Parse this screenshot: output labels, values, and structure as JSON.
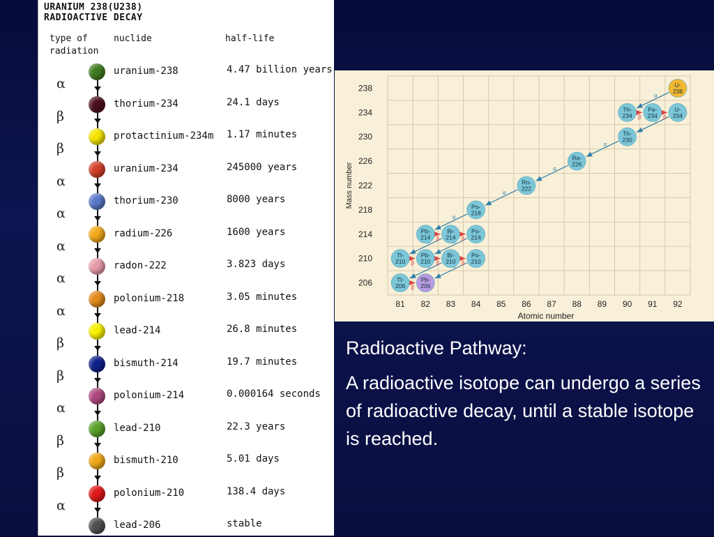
{
  "table": {
    "title_line1": "URANIUM 238(U238)",
    "title_line2": "RADIOACTIVE DECAY",
    "header_type_line1": "type of",
    "header_type_line2": "radiation",
    "header_nuclide": "nuclide",
    "header_halflife": "half-life",
    "rows": [
      {
        "nuclide": "uranium-238",
        "half_life": "4.47 billion years",
        "color": "#3f7a1e"
      },
      {
        "nuclide": "thorium-234",
        "half_life": "24.1 days",
        "color": "#4a0f1c"
      },
      {
        "nuclide": "protactinium-234m",
        "half_life": "1.17 minutes",
        "color": "#f5e400"
      },
      {
        "nuclide": "uranium-234",
        "half_life": "245000 years",
        "color": "#d2402a"
      },
      {
        "nuclide": "thorium-230",
        "half_life": "8000 years",
        "color": "#5a78c8"
      },
      {
        "nuclide": "radium-226",
        "half_life": "1600 years",
        "color": "#f0a818"
      },
      {
        "nuclide": "radon-222",
        "half_life": "3.823 days",
        "color": "#e89aa8"
      },
      {
        "nuclide": "polonium-218",
        "half_life": "3.05 minutes",
        "color": "#e08a1a"
      },
      {
        "nuclide": "lead-214",
        "half_life": "26.8 minutes",
        "color": "#f8f000"
      },
      {
        "nuclide": "bismuth-214",
        "half_life": "19.7 minutes",
        "color": "#10208a"
      },
      {
        "nuclide": "polonium-214",
        "half_life": "0.000164 seconds",
        "color": "#b04880"
      },
      {
        "nuclide": "lead-210",
        "half_life": "22.3 years",
        "color": "#58a028"
      },
      {
        "nuclide": "bismuth-210",
        "half_life": "5.01 days",
        "color": "#f0a818"
      },
      {
        "nuclide": "polonium-210",
        "half_life": "138.4 days",
        "color": "#e01818"
      },
      {
        "nuclide": "lead-206",
        "half_life": "stable",
        "color": "#505050"
      }
    ],
    "radiation": [
      "α",
      "β",
      "β",
      "α",
      "α",
      "α",
      "α",
      "α",
      "β",
      "β",
      "α",
      "β",
      "β",
      "α"
    ]
  },
  "chart_data": {
    "type": "scatter",
    "xlabel": "Atomic number",
    "ylabel": "Mass number",
    "x_ticks": [
      "81",
      "82",
      "83",
      "84",
      "85",
      "86",
      "87",
      "88",
      "89",
      "90",
      "91",
      "92"
    ],
    "y_ticks": [
      "238",
      "234",
      "230",
      "226",
      "222",
      "218",
      "214",
      "210",
      "206"
    ],
    "xlim": [
      81,
      92
    ],
    "ylim": [
      206,
      238
    ],
    "points": [
      {
        "label": "U-238",
        "z": 92,
        "a": 238,
        "color": "#f2b830"
      },
      {
        "label": "Th-234",
        "z": 90,
        "a": 234,
        "color": "#7cc6d8"
      },
      {
        "label": "Pa-234",
        "z": 91,
        "a": 234,
        "color": "#7cc6d8"
      },
      {
        "label": "U-234",
        "z": 92,
        "a": 234,
        "color": "#7cc6d8"
      },
      {
        "label": "Th-230",
        "z": 90,
        "a": 230,
        "color": "#7cc6d8"
      },
      {
        "label": "Ra-226",
        "z": 88,
        "a": 226,
        "color": "#7cc6d8"
      },
      {
        "label": "Rn-222",
        "z": 86,
        "a": 222,
        "color": "#7cc6d8"
      },
      {
        "label": "Po-218",
        "z": 84,
        "a": 218,
        "color": "#7cc6d8"
      },
      {
        "label": "Pb-214",
        "z": 82,
        "a": 214,
        "color": "#7cc6d8"
      },
      {
        "label": "Bi-214",
        "z": 83,
        "a": 214,
        "color": "#7cc6d8"
      },
      {
        "label": "Po-214",
        "z": 84,
        "a": 214,
        "color": "#7cc6d8"
      },
      {
        "label": "Tl-210",
        "z": 81,
        "a": 210,
        "color": "#7cc6d8"
      },
      {
        "label": "Pb-210",
        "z": 82,
        "a": 210,
        "color": "#7cc6d8"
      },
      {
        "label": "Bi-210",
        "z": 83,
        "a": 210,
        "color": "#7cc6d8"
      },
      {
        "label": "Po-210",
        "z": 84,
        "a": 210,
        "color": "#7cc6d8"
      },
      {
        "label": "Tl-206",
        "z": 81,
        "a": 206,
        "color": "#7cc6d8"
      },
      {
        "label": "Pb-206",
        "z": 82,
        "a": 206,
        "color": "#b89ae0"
      }
    ],
    "alpha_decays": [
      [
        "U-238",
        "Th-234"
      ],
      [
        "U-234",
        "Th-230"
      ],
      [
        "Th-230",
        "Ra-226"
      ],
      [
        "Ra-226",
        "Rn-222"
      ],
      [
        "Rn-222",
        "Po-218"
      ],
      [
        "Po-218",
        "Pb-214"
      ],
      [
        "Po-214",
        "Pb-210"
      ],
      [
        "Bi-214",
        "Tl-210"
      ],
      [
        "Po-210",
        "Pb-206"
      ],
      [
        "Bi-210",
        "Tl-206"
      ]
    ],
    "beta_decays": [
      [
        "Th-234",
        "Pa-234"
      ],
      [
        "Pa-234",
        "U-234"
      ],
      [
        "Pb-214",
        "Bi-214"
      ],
      [
        "Bi-214",
        "Po-214"
      ],
      [
        "Tl-210",
        "Pb-210"
      ],
      [
        "Pb-210",
        "Bi-210"
      ],
      [
        "Bi-210",
        "Po-210"
      ],
      [
        "Tl-206",
        "Pb-206"
      ]
    ],
    "alpha_label": "α",
    "beta_label": "β",
    "grid": true
  },
  "caption": {
    "heading": "Radioactive Pathway:",
    "body": "A radioactive isotope can undergo a series of radioactive decay, until a stable isotope is reached."
  }
}
